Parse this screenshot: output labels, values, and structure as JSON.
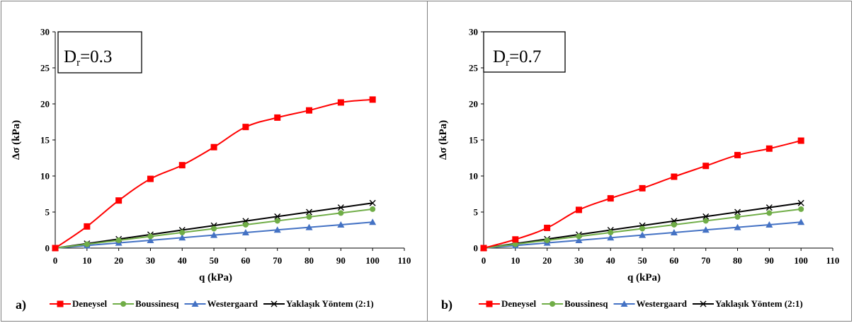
{
  "chart_data": [
    {
      "type": "line",
      "panel_label": "a)",
      "annotation": {
        "main": "D",
        "sub": "r",
        "rest": "=0.3"
      },
      "xlabel": "q (kPa)",
      "ylabel": "Δσ (kPa)",
      "xlim": [
        0,
        110
      ],
      "ylim": [
        0,
        30
      ],
      "xticks": [
        0,
        10,
        20,
        30,
        40,
        50,
        60,
        70,
        80,
        90,
        100,
        110
      ],
      "yticks": [
        0,
        5,
        10,
        15,
        20,
        25,
        30
      ],
      "grid": false,
      "legend_position": "bottom",
      "x": [
        0,
        10,
        20,
        30,
        40,
        50,
        60,
        70,
        80,
        90,
        100
      ],
      "series": [
        {
          "name": "Deneysel",
          "marker": "square",
          "color": "#ff0000",
          "smooth": true,
          "values": [
            0,
            3.0,
            6.6,
            9.6,
            11.5,
            14.0,
            16.8,
            18.1,
            19.1,
            20.2,
            20.6
          ]
        },
        {
          "name": "Boussinesq",
          "marker": "circle",
          "color": "#70ad47",
          "smooth": false,
          "values": [
            0,
            0.54,
            1.08,
            1.62,
            2.16,
            2.7,
            3.24,
            3.78,
            4.32,
            4.86,
            5.4
          ]
        },
        {
          "name": "Westergaard",
          "marker": "triangle",
          "color": "#4472c4",
          "smooth": false,
          "values": [
            0,
            0.36,
            0.72,
            1.08,
            1.44,
            1.8,
            2.16,
            2.52,
            2.88,
            3.24,
            3.6
          ]
        },
        {
          "name": "Yaklaşık Yöntem (2:1)",
          "marker": "x",
          "color": "#000000",
          "smooth": false,
          "values": [
            0,
            0.63,
            1.25,
            1.88,
            2.5,
            3.13,
            3.75,
            4.38,
            5.0,
            5.63,
            6.25
          ]
        }
      ]
    },
    {
      "type": "line",
      "panel_label": "b)",
      "annotation": {
        "main": "D",
        "sub": "r",
        "rest": "=0.7"
      },
      "xlabel": "q (kPa)",
      "ylabel": "Δσ (kPa)",
      "xlim": [
        0,
        110
      ],
      "ylim": [
        0,
        30
      ],
      "xticks": [
        0,
        10,
        20,
        30,
        40,
        50,
        60,
        70,
        80,
        90,
        100,
        110
      ],
      "yticks": [
        0,
        5,
        10,
        15,
        20,
        25,
        30
      ],
      "grid": false,
      "legend_position": "bottom",
      "x": [
        0,
        10,
        20,
        30,
        40,
        50,
        60,
        70,
        80,
        90,
        100
      ],
      "series": [
        {
          "name": "Deneysel",
          "marker": "square",
          "color": "#ff0000",
          "smooth": true,
          "values": [
            0,
            1.2,
            2.8,
            5.3,
            6.9,
            8.3,
            9.9,
            11.4,
            12.9,
            13.8,
            14.9
          ]
        },
        {
          "name": "Boussinesq",
          "marker": "circle",
          "color": "#70ad47",
          "smooth": false,
          "values": [
            0,
            0.54,
            1.08,
            1.62,
            2.16,
            2.7,
            3.24,
            3.78,
            4.32,
            4.86,
            5.4
          ]
        },
        {
          "name": "Westergaard",
          "marker": "triangle",
          "color": "#4472c4",
          "smooth": false,
          "values": [
            0,
            0.36,
            0.72,
            1.08,
            1.44,
            1.8,
            2.16,
            2.52,
            2.88,
            3.24,
            3.6
          ]
        },
        {
          "name": "Yaklaşık Yöntem (2:1)",
          "marker": "x",
          "color": "#000000",
          "smooth": false,
          "values": [
            0,
            0.63,
            1.25,
            1.88,
            2.5,
            3.13,
            3.75,
            4.38,
            5.0,
            5.63,
            6.25
          ]
        }
      ]
    }
  ]
}
